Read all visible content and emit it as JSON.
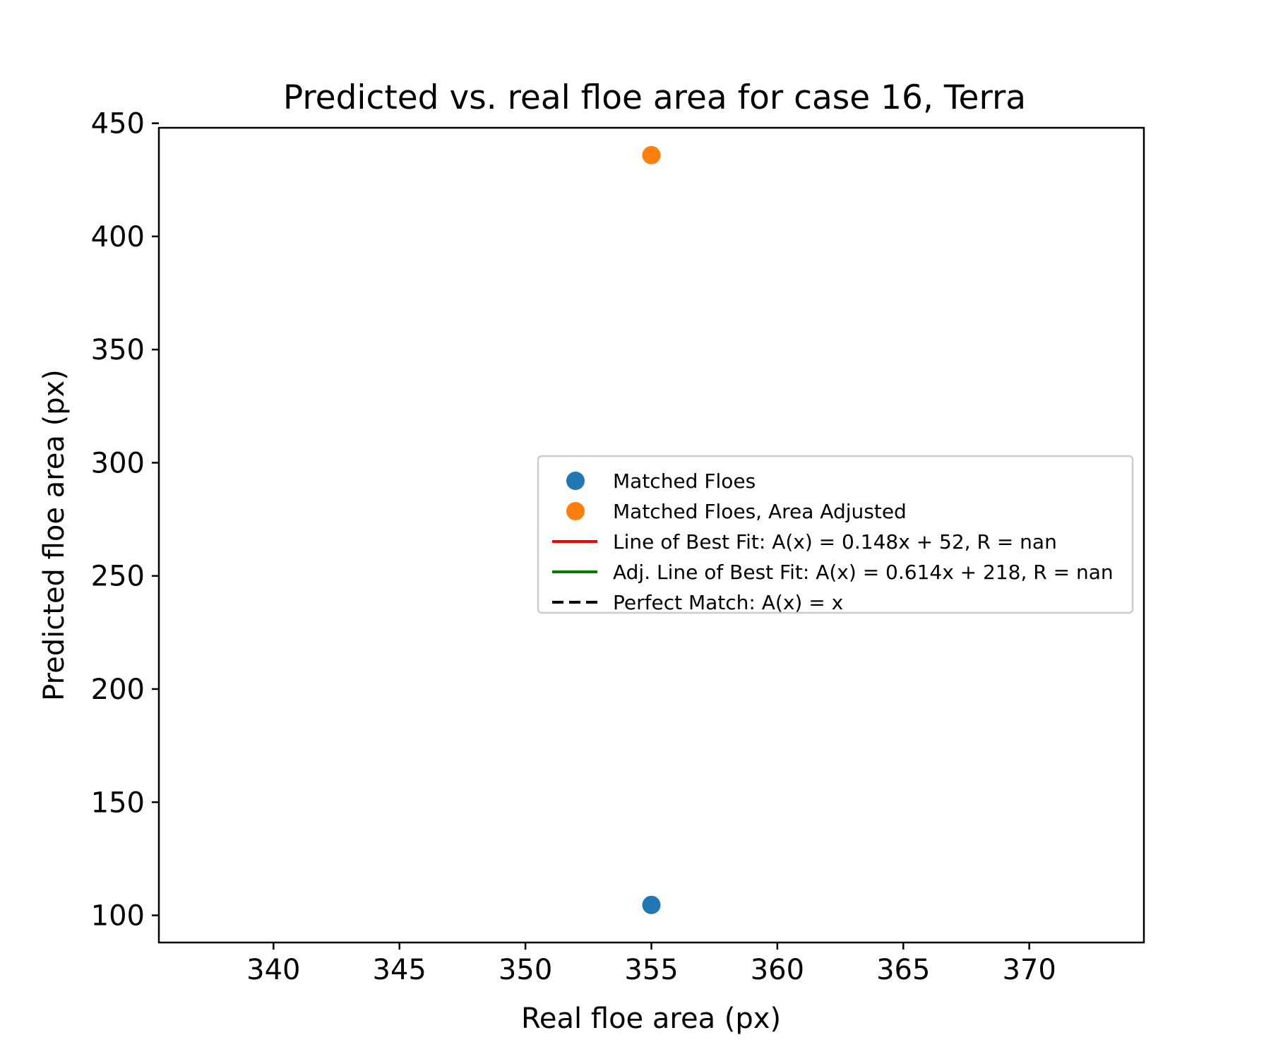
{
  "chart_data": {
    "type": "scatter",
    "title": "Predicted vs. real floe area  for case 16, Terra",
    "xlabel": "Real floe area (px)",
    "ylabel": "Predicted floe area (px)",
    "xlim": [
      335.45,
      374.55
    ],
    "ylim": [
      88,
      448
    ],
    "xticks": [
      340,
      345,
      350,
      355,
      360,
      365,
      370
    ],
    "yticks": [
      100,
      150,
      200,
      250,
      300,
      350,
      400,
      450
    ],
    "xtick_labels": [
      "340",
      "345",
      "350",
      "355",
      "360",
      "365",
      "370"
    ],
    "ytick_labels": [
      "100",
      "150",
      "200",
      "250",
      "300",
      "350",
      "400",
      "450"
    ],
    "grid": false,
    "legend_position": "center-right",
    "series": [
      {
        "name": "Matched Floes",
        "kind": "scatter",
        "color": "#1f77b4",
        "points": [
          {
            "x": 355,
            "y": 104.6
          }
        ]
      },
      {
        "name": "Matched Floes, Area Adjusted",
        "kind": "scatter",
        "color": "#ff7f0e",
        "points": [
          {
            "x": 355,
            "y": 435.9
          }
        ]
      },
      {
        "name": "Line of Best Fit: A(x) = 0.148x + 52, R = nan",
        "kind": "line",
        "color": "#ff0000",
        "dash": "solid",
        "points": []
      },
      {
        "name": "Adj. Line of Best Fit: A(x) = 0.614x + 218, R = nan",
        "kind": "line",
        "color": "#008000",
        "dash": "solid",
        "points": []
      },
      {
        "name": "Perfect Match: A(x) = x",
        "kind": "line",
        "color": "#000000",
        "dash": "dashed",
        "points": []
      }
    ]
  }
}
